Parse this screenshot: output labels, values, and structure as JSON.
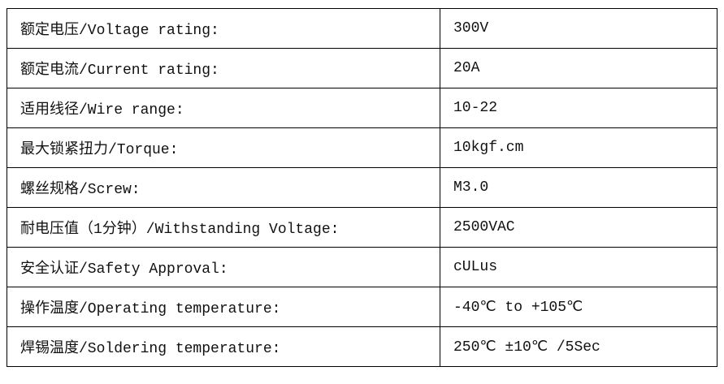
{
  "specs": [
    {
      "label": "额定电压/Voltage rating:",
      "value": "300V"
    },
    {
      "label": "额定电流/Current rating:",
      "value": "20A"
    },
    {
      "label": "适用线径/Wire range:",
      "value": "10-22"
    },
    {
      "label": "最大锁紧扭力/Torque:",
      "value": "10kgf.cm"
    },
    {
      "label": "螺丝规格/Screw:",
      "value": "M3.0"
    },
    {
      "label": "耐电压值（1分钟）/Withstanding Voltage:",
      "value": "2500VAC"
    },
    {
      "label": "安全认证/Safety Approval:",
      "value": "cULus"
    },
    {
      "label": "操作温度/Operating temperature:",
      "value": "-40℃ to +105℃"
    },
    {
      "label": "焊锡温度/Soldering temperature:",
      "value": "250℃ ±10℃ /5Sec"
    }
  ]
}
